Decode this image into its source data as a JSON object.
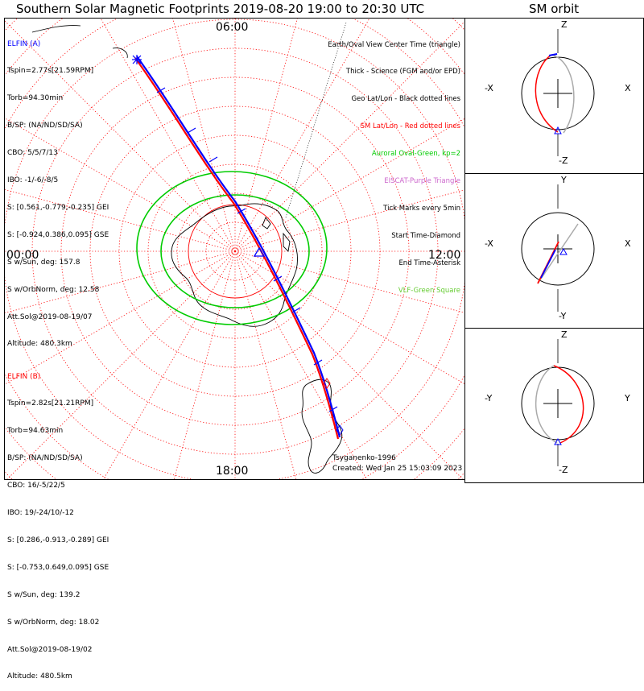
{
  "title": "Southern Solar Magnetic Footprints 2019-08-20 19:00 to 20:30 UTC",
  "sm_title": "SM orbit",
  "map_labels": {
    "top": "06:00",
    "left": "00:00",
    "right": "12:00",
    "bottom": "18:00"
  },
  "elfin_a": {
    "color": "#0000ff",
    "lines": [
      "ELFIN (A)",
      "Tspin=2.77s[21.59RPM]",
      "Torb=94.30min",
      "B/SP: (NA/ND/SD/SA)",
      "CBO: 5/5/7/13",
      "IBO: -1/-6/-8/5",
      "S: [0.561,-0.779,-0.235] GEI",
      "S: [-0.924,0.386,0.095] GSE",
      "S w/Sun, deg: 157.8",
      "S w/OrbNorm, deg: 12.58",
      "Att.Sol@2019-08-19/07",
      "Altitude: 480.3km"
    ]
  },
  "elfin_b": {
    "color": "#ff0000",
    "lines": [
      "ELFIN (B)",
      "Tspin=2.82s[21.21RPM]",
      "Torb=94.63min",
      "B/SP: (NA/ND/SD/SA)",
      "CBO: 16/-5/22/5",
      "IBO: 19/-24/10/-12",
      "S: [0.286,-0.913,-0.289] GEI",
      "S: [-0.753,0.649,0.095] GSE",
      "S w/Sun, deg: 139.2",
      "S w/OrbNorm, deg: 18.02",
      "Att.Sol@2019-08-19/02",
      "Altitude: 480.5km"
    ]
  },
  "legend": [
    {
      "text": "Earth/Oval View Center Time (triangle)",
      "color": "#000000"
    },
    {
      "text": "Thick - Science (FGM and/or EPD)",
      "color": "#000000"
    },
    {
      "text": "Geo Lat/Lon - Black dotted lines",
      "color": "#000000"
    },
    {
      "text": "SM Lat/Lon - Red dotted lines",
      "color": "#ff0000"
    },
    {
      "text": "Auroral Oval-Green, kp=2",
      "color": "#00cc00"
    },
    {
      "text": "EISCAT-Purple Triangle",
      "color": "#cc66cc"
    },
    {
      "text": "Tick Marks every 5min",
      "color": "#000000"
    },
    {
      "text": "Start Time-Diamond",
      "color": "#000000"
    },
    {
      "text": "End Time-Asterisk",
      "color": "#000000"
    },
    {
      "text": "VLF-Green Square",
      "color": "#66cc33"
    }
  ],
  "footer": {
    "model": "Tsyganenko-1996",
    "created": "Created: Wed Jan 25 15:03:09 2023"
  },
  "sm_panels": [
    {
      "top": "Z",
      "bottom": "-Z",
      "left": "-X",
      "right": "X"
    },
    {
      "top": "Y",
      "bottom": "-Y",
      "left": "-X",
      "right": "X"
    },
    {
      "top": "Z",
      "bottom": "-Z",
      "left": "-Y",
      "right": "Y"
    }
  ],
  "colors": {
    "elfin_a": "#0000ff",
    "elfin_b": "#ff0000",
    "oval": "#00cc00",
    "sm_grid": "#ff0000",
    "coast": "#000000"
  }
}
